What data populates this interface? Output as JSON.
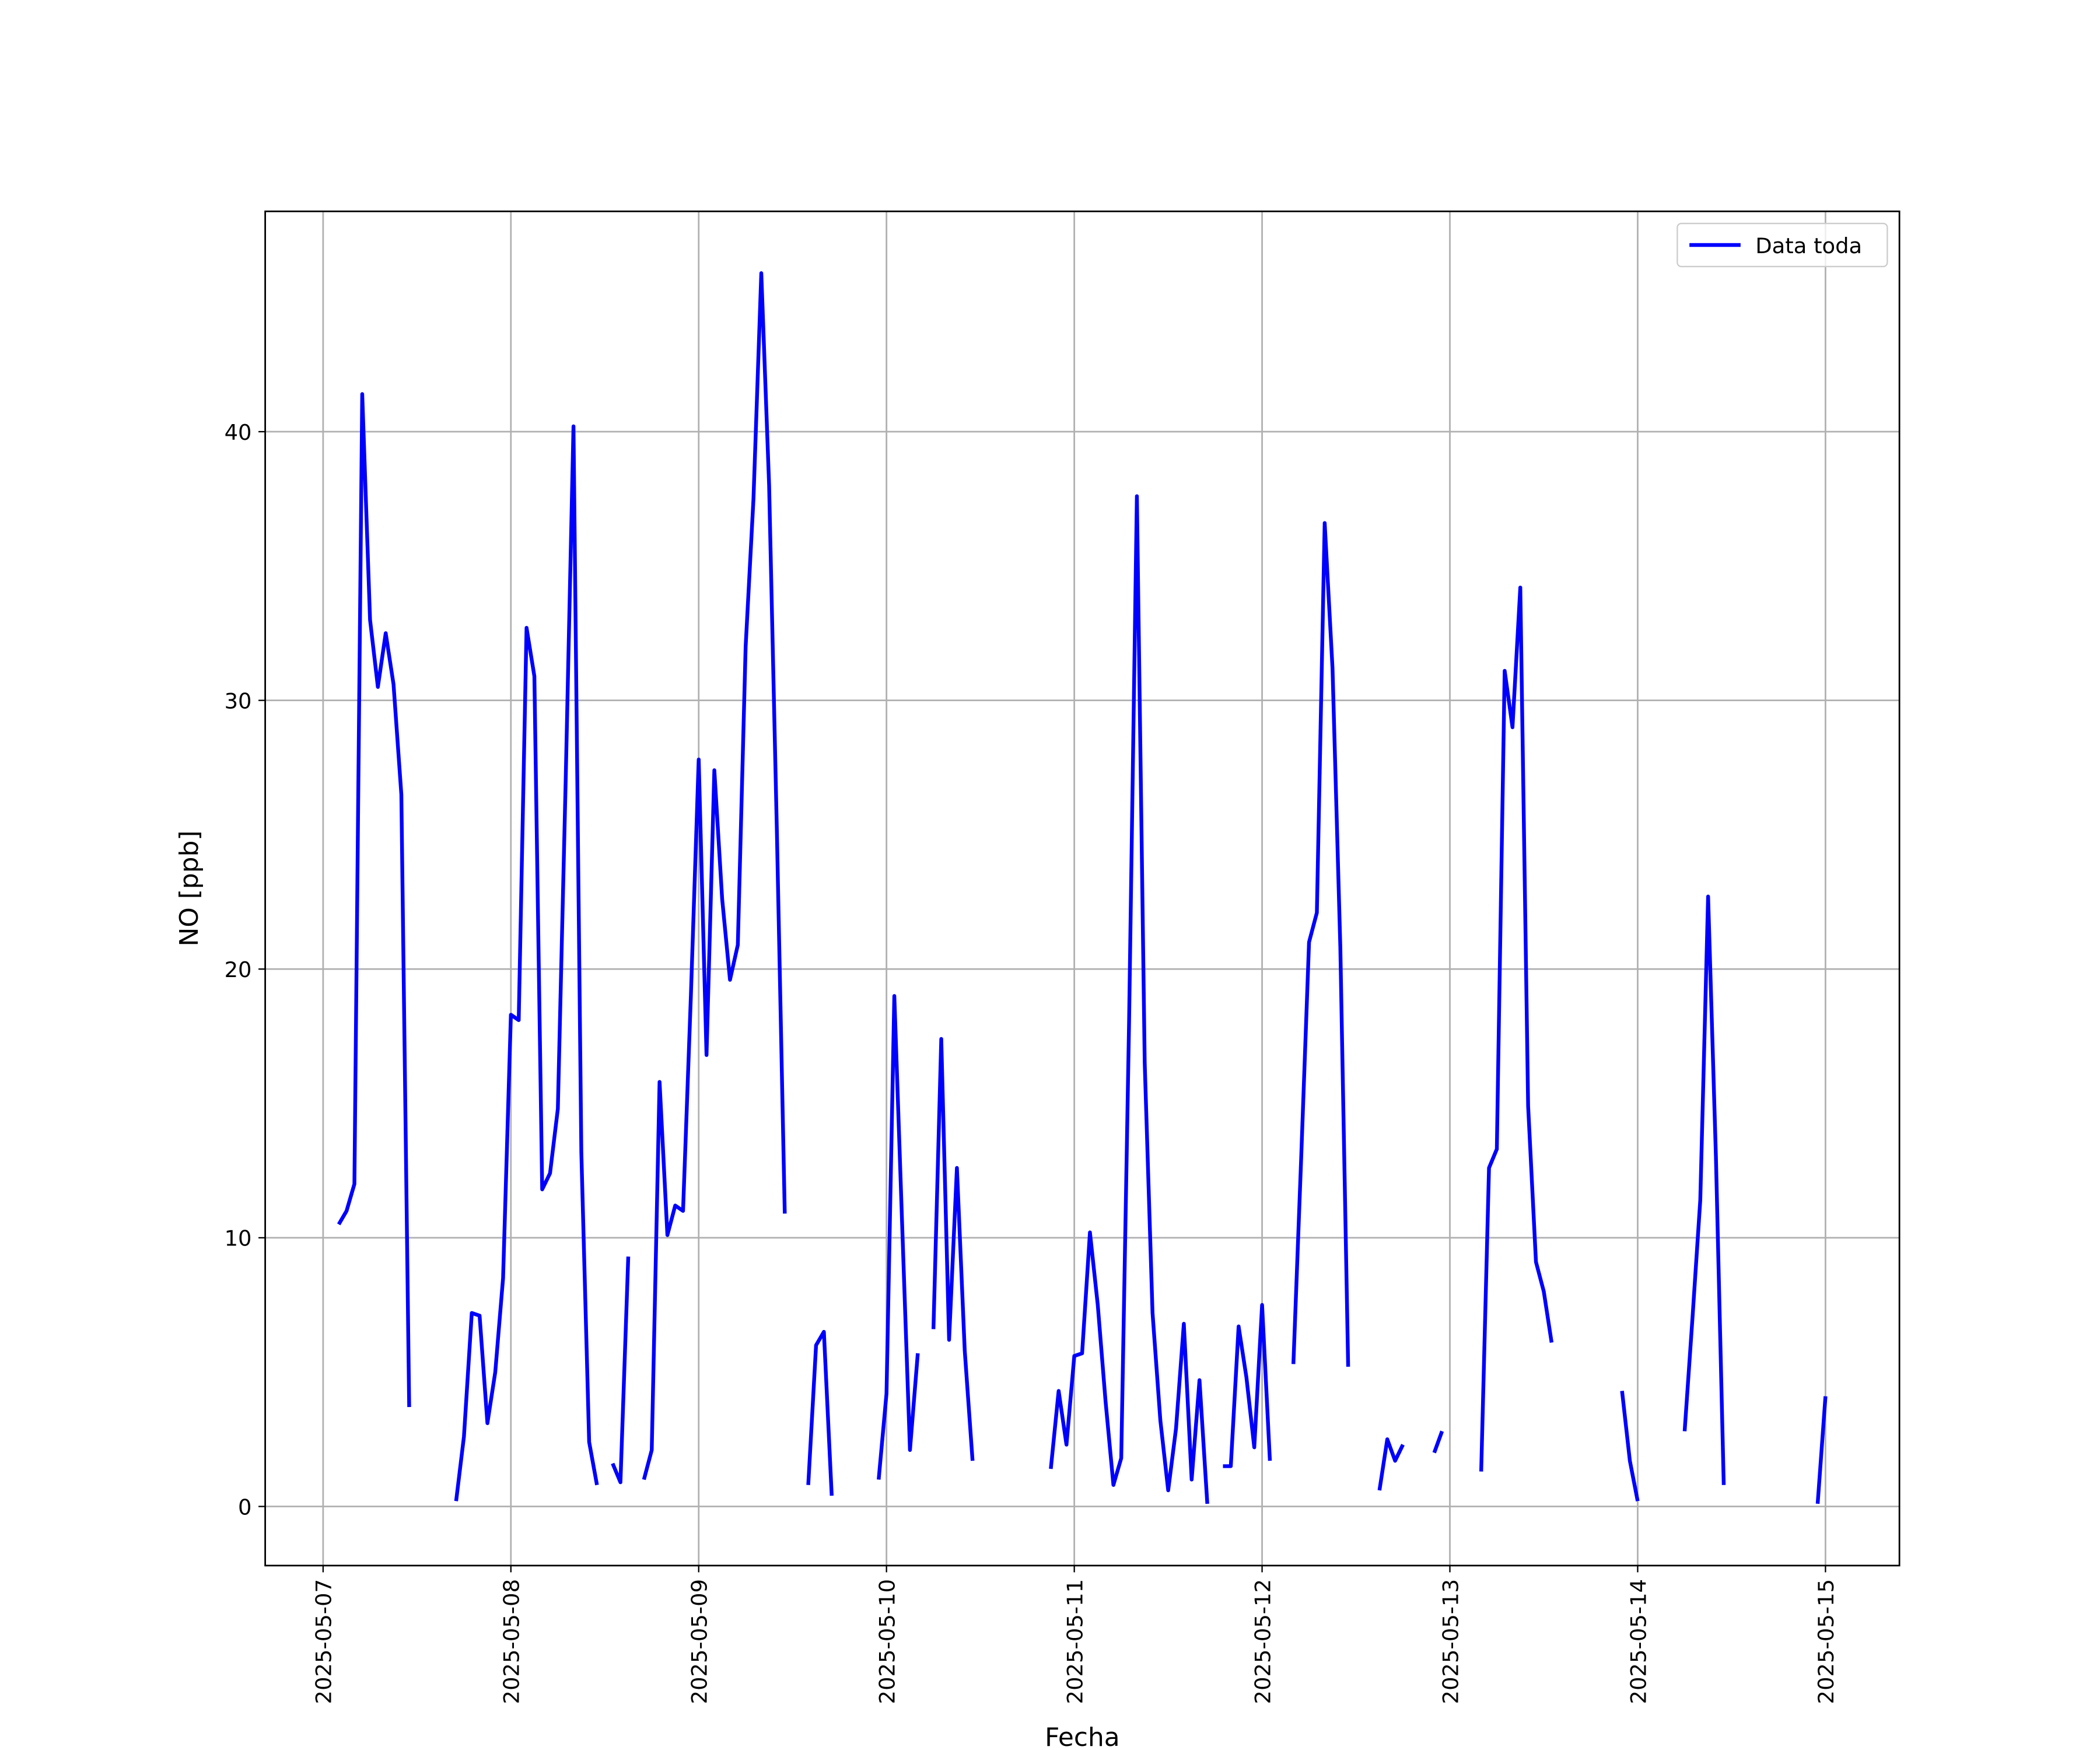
{
  "chart_data": {
    "type": "line",
    "xlabel": "Fecha",
    "ylabel": "NO [ppb]",
    "x": [
      "2025-05-07 02:00",
      "2025-05-07 03:00",
      "2025-05-07 04:00",
      "2025-05-07 05:00",
      "2025-05-07 06:00",
      "2025-05-07 07:00",
      "2025-05-07 08:00",
      "2025-05-07 09:00",
      "2025-05-07 10:00",
      "2025-05-07 11:00",
      "2025-05-07 12:00",
      "2025-05-07 17:00",
      "2025-05-07 18:00",
      "2025-05-07 19:00",
      "2025-05-07 20:00",
      "2025-05-07 21:00",
      "2025-05-07 22:00",
      "2025-05-07 23:00",
      "2025-05-08 00:00",
      "2025-05-08 01:00",
      "2025-05-08 02:00",
      "2025-05-08 03:00",
      "2025-05-08 04:00",
      "2025-05-08 05:00",
      "2025-05-08 06:00",
      "2025-05-08 07:00",
      "2025-05-08 08:00",
      "2025-05-08 09:00",
      "2025-05-08 10:00",
      "2025-05-08 11:00",
      "2025-05-08 12:00",
      "2025-05-08 13:00",
      "2025-05-08 14:00",
      "2025-05-08 15:00",
      "2025-05-08 16:00",
      "2025-05-08 17:00",
      "2025-05-08 18:00",
      "2025-05-08 19:00",
      "2025-05-08 20:00",
      "2025-05-08 21:00",
      "2025-05-08 22:00",
      "2025-05-08 23:00",
      "2025-05-09 00:00",
      "2025-05-09 01:00",
      "2025-05-09 02:00",
      "2025-05-09 03:00",
      "2025-05-09 04:00",
      "2025-05-09 05:00",
      "2025-05-09 06:00",
      "2025-05-09 07:00",
      "2025-05-09 08:00",
      "2025-05-09 09:00",
      "2025-05-09 10:00",
      "2025-05-09 11:00",
      "2025-05-09 12:00",
      "2025-05-09 14:00",
      "2025-05-09 15:00",
      "2025-05-09 16:00",
      "2025-05-09 17:00",
      "2025-05-09 18:00",
      "2025-05-09 23:00",
      "2025-05-10 00:00",
      "2025-05-10 01:00",
      "2025-05-10 02:00",
      "2025-05-10 03:00",
      "2025-05-10 04:00",
      "2025-05-10 05:00",
      "2025-05-10 06:00",
      "2025-05-10 07:00",
      "2025-05-10 08:00",
      "2025-05-10 09:00",
      "2025-05-10 10:00",
      "2025-05-10 11:00",
      "2025-05-10 12:00",
      "2025-05-10 21:00",
      "2025-05-10 22:00",
      "2025-05-10 23:00",
      "2025-05-11 00:00",
      "2025-05-11 01:00",
      "2025-05-11 02:00",
      "2025-05-11 03:00",
      "2025-05-11 04:00",
      "2025-05-11 05:00",
      "2025-05-11 06:00",
      "2025-05-11 07:00",
      "2025-05-11 08:00",
      "2025-05-11 09:00",
      "2025-05-11 10:00",
      "2025-05-11 11:00",
      "2025-05-11 12:00",
      "2025-05-11 13:00",
      "2025-05-11 14:00",
      "2025-05-11 15:00",
      "2025-05-11 16:00",
      "2025-05-11 17:00",
      "2025-05-11 18:00",
      "2025-05-11 19:00",
      "2025-05-11 20:00",
      "2025-05-11 21:00",
      "2025-05-11 22:00",
      "2025-05-11 23:00",
      "2025-05-12 00:00",
      "2025-05-12 01:00",
      "2025-05-12 02:00",
      "2025-05-12 04:00",
      "2025-05-12 05:00",
      "2025-05-12 06:00",
      "2025-05-12 07:00",
      "2025-05-12 08:00",
      "2025-05-12 09:00",
      "2025-05-12 10:00",
      "2025-05-12 11:00",
      "2025-05-12 12:00",
      "2025-05-12 15:00",
      "2025-05-12 16:00",
      "2025-05-12 17:00",
      "2025-05-12 18:00",
      "2025-05-12 19:00",
      "2025-05-12 22:00",
      "2025-05-12 23:00",
      "2025-05-13 00:00",
      "2025-05-13 04:00",
      "2025-05-13 05:00",
      "2025-05-13 06:00",
      "2025-05-13 07:00",
      "2025-05-13 08:00",
      "2025-05-13 09:00",
      "2025-05-13 10:00",
      "2025-05-13 11:00",
      "2025-05-13 12:00",
      "2025-05-13 13:00",
      "2025-05-13 14:00",
      "2025-05-13 22:00",
      "2025-05-13 23:00",
      "2025-05-14 00:00",
      "2025-05-14 01:00",
      "2025-05-14 06:00",
      "2025-05-14 07:00",
      "2025-05-14 08:00",
      "2025-05-14 09:00",
      "2025-05-14 10:00",
      "2025-05-14 11:00",
      "2025-05-14 12:00",
      "2025-05-14 23:00",
      "2025-05-15 00:00"
    ],
    "series": [
      {
        "name": "Data toda",
        "color": "#0000ff",
        "values": [
          10.5,
          11.0,
          12.0,
          41.4,
          33.0,
          30.5,
          32.5,
          30.6,
          26.5,
          3.7,
          null,
          0.2,
          2.6,
          7.2,
          7.1,
          3.1,
          5.0,
          8.5,
          18.3,
          18.1,
          32.7,
          30.9,
          11.8,
          12.4,
          14.8,
          27.0,
          40.2,
          13.2,
          2.4,
          0.8,
          null,
          1.6,
          0.9,
          9.3,
          null,
          1.0,
          2.1,
          15.8,
          10.1,
          11.2,
          11.0,
          19.0,
          27.8,
          16.8,
          27.4,
          22.6,
          19.6,
          20.9,
          32.0,
          37.5,
          45.9,
          38.0,
          25.0,
          10.9,
          null,
          0.8,
          6.0,
          6.5,
          0.4,
          null,
          1.0,
          4.2,
          19.0,
          10.5,
          2.1,
          5.7,
          null,
          6.6,
          17.4,
          6.2,
          12.6,
          5.8,
          1.7,
          null,
          1.4,
          4.3,
          2.3,
          5.6,
          5.7,
          10.2,
          7.5,
          3.9,
          0.8,
          1.8,
          18.0,
          37.6,
          16.5,
          7.2,
          3.2,
          0.6,
          2.9,
          6.8,
          1.0,
          4.7,
          0.1,
          null,
          1.5,
          1.5,
          6.7,
          4.8,
          2.2,
          7.5,
          1.7,
          null,
          5.3,
          13.0,
          21.0,
          22.1,
          36.6,
          31.2,
          20.8,
          5.2,
          null,
          0.6,
          2.5,
          1.7,
          2.3,
          null,
          2.0,
          2.8,
          null,
          1.3,
          12.6,
          13.3,
          31.1,
          29.0,
          34.2,
          14.9,
          9.1,
          8.0,
          6.1,
          null,
          4.3,
          1.7,
          0.2,
          null,
          2.8,
          7.0,
          11.4,
          22.7,
          13.0,
          0.8,
          null,
          0.1,
          4.1
        ]
      }
    ],
    "xlim": [
      "2025-05-06 16:36",
      "2025-05-15 09:27"
    ],
    "xticks": [
      "2025-05-07",
      "2025-05-08",
      "2025-05-09",
      "2025-05-10",
      "2025-05-11",
      "2025-05-12",
      "2025-05-13",
      "2025-05-14",
      "2025-05-15"
    ],
    "ylim": [
      -2.2,
      48.2
    ],
    "yticks": [
      0,
      10,
      20,
      30,
      40
    ],
    "grid": true,
    "legend": "upper right"
  }
}
